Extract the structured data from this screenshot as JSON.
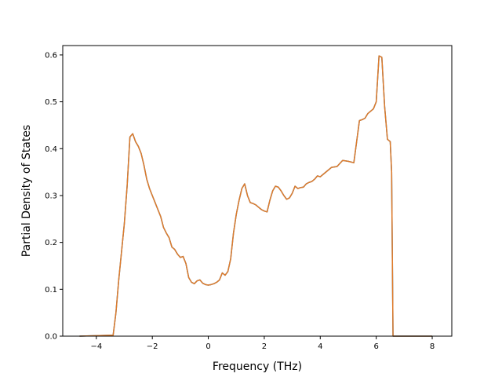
{
  "chart_data": {
    "type": "line",
    "xlabel": "Frequency (THz)",
    "ylabel": "Partial Density of States",
    "xlim": [
      -5.2,
      8.7
    ],
    "ylim": [
      0.0,
      0.62
    ],
    "xticks": [
      -4,
      -2,
      0,
      2,
      4,
      6,
      8
    ],
    "xtick_labels": [
      "−4",
      "−2",
      "0",
      "2",
      "4",
      "6",
      "8"
    ],
    "yticks": [
      0.0,
      0.1,
      0.2,
      0.3,
      0.4,
      0.5,
      0.6
    ],
    "ytick_labels": [
      "0.0",
      "0.1",
      "0.2",
      "0.3",
      "0.4",
      "0.5",
      "0.6"
    ],
    "grid": false,
    "series": [
      {
        "color": "#1f77b4",
        "x": [
          -4.6,
          -3.4,
          -3.3,
          -3.2,
          -3.1,
          -3.0,
          -2.9,
          -2.8,
          -2.7,
          -2.6,
          -2.5,
          -2.4,
          -2.3,
          -2.2,
          -2.1,
          -2.0,
          -1.9,
          -1.8,
          -1.7,
          -1.6,
          -1.5,
          -1.4,
          -1.3,
          -1.2,
          -1.1,
          -1.0,
          -0.9,
          -0.8,
          -0.7,
          -0.6,
          -0.5,
          -0.4,
          -0.3,
          -0.2,
          -0.1,
          0.0,
          0.1,
          0.2,
          0.3,
          0.4,
          0.5,
          0.6,
          0.7,
          0.8,
          0.9,
          1.0,
          1.1,
          1.2,
          1.3,
          1.4,
          1.5,
          1.6,
          1.7,
          1.8,
          1.9,
          2.0,
          2.1,
          2.2,
          2.3,
          2.4,
          2.5,
          2.6,
          2.7,
          2.8,
          2.9,
          3.0,
          3.1,
          3.2,
          3.3,
          3.4,
          3.5,
          3.6,
          3.7,
          3.8,
          3.9,
          4.0,
          4.2,
          4.4,
          4.6,
          4.8,
          5.0,
          5.2,
          5.4,
          5.5,
          5.6,
          5.7,
          5.8,
          5.9,
          6.0,
          6.1,
          6.2,
          6.3,
          6.4,
          6.5,
          6.55,
          6.6,
          6.7,
          6.8,
          6.9,
          7.0,
          7.1,
          8.0
        ],
        "y": [
          0.0,
          0.002,
          0.05,
          0.12,
          0.18,
          0.24,
          0.32,
          0.425,
          0.432,
          0.415,
          0.405,
          0.39,
          0.365,
          0.335,
          0.315,
          0.3,
          0.285,
          0.27,
          0.255,
          0.232,
          0.22,
          0.21,
          0.19,
          0.185,
          0.175,
          0.168,
          0.17,
          0.155,
          0.125,
          0.115,
          0.112,
          0.118,
          0.12,
          0.113,
          0.11,
          0.109,
          0.11,
          0.112,
          0.115,
          0.12,
          0.135,
          0.13,
          0.138,
          0.165,
          0.22,
          0.26,
          0.29,
          0.315,
          0.325,
          0.3,
          0.285,
          0.283,
          0.28,
          0.275,
          0.27,
          0.267,
          0.265,
          0.29,
          0.31,
          0.32,
          0.318,
          0.31,
          0.3,
          0.292,
          0.295,
          0.305,
          0.32,
          0.315,
          0.317,
          0.318,
          0.325,
          0.328,
          0.33,
          0.335,
          0.342,
          0.34,
          0.35,
          0.36,
          0.362,
          0.375,
          0.373,
          0.37,
          0.46,
          0.462,
          0.465,
          0.475,
          0.48,
          0.485,
          0.5,
          0.598,
          0.595,
          0.49,
          0.42,
          0.415,
          0.35,
          0.0,
          0.0,
          0.0,
          0.0,
          0.0,
          0.0,
          0.0
        ]
      },
      {
        "color": "#e07b2a",
        "x": [
          -4.6,
          -3.4,
          -3.3,
          -3.2,
          -3.1,
          -3.0,
          -2.9,
          -2.8,
          -2.7,
          -2.6,
          -2.5,
          -2.4,
          -2.3,
          -2.2,
          -2.1,
          -2.0,
          -1.9,
          -1.8,
          -1.7,
          -1.6,
          -1.5,
          -1.4,
          -1.3,
          -1.2,
          -1.1,
          -1.0,
          -0.9,
          -0.8,
          -0.7,
          -0.6,
          -0.5,
          -0.4,
          -0.3,
          -0.2,
          -0.1,
          0.0,
          0.1,
          0.2,
          0.3,
          0.4,
          0.5,
          0.6,
          0.7,
          0.8,
          0.9,
          1.0,
          1.1,
          1.2,
          1.3,
          1.4,
          1.5,
          1.6,
          1.7,
          1.8,
          1.9,
          2.0,
          2.1,
          2.2,
          2.3,
          2.4,
          2.5,
          2.6,
          2.7,
          2.8,
          2.9,
          3.0,
          3.1,
          3.2,
          3.3,
          3.4,
          3.5,
          3.6,
          3.7,
          3.8,
          3.9,
          4.0,
          4.2,
          4.4,
          4.6,
          4.8,
          5.0,
          5.2,
          5.4,
          5.5,
          5.6,
          5.7,
          5.8,
          5.9,
          6.0,
          6.1,
          6.2,
          6.3,
          6.4,
          6.5,
          6.55,
          6.6,
          6.7,
          6.8,
          6.9,
          7.0,
          7.1,
          8.0
        ],
        "y": [
          0.0,
          0.002,
          0.05,
          0.12,
          0.18,
          0.24,
          0.32,
          0.425,
          0.432,
          0.415,
          0.405,
          0.39,
          0.365,
          0.335,
          0.315,
          0.3,
          0.285,
          0.27,
          0.255,
          0.232,
          0.22,
          0.21,
          0.19,
          0.185,
          0.175,
          0.168,
          0.17,
          0.155,
          0.125,
          0.115,
          0.112,
          0.118,
          0.12,
          0.113,
          0.11,
          0.109,
          0.11,
          0.112,
          0.115,
          0.12,
          0.135,
          0.13,
          0.138,
          0.165,
          0.22,
          0.26,
          0.29,
          0.315,
          0.325,
          0.3,
          0.285,
          0.283,
          0.28,
          0.275,
          0.27,
          0.267,
          0.265,
          0.29,
          0.31,
          0.32,
          0.318,
          0.31,
          0.3,
          0.292,
          0.295,
          0.305,
          0.32,
          0.315,
          0.317,
          0.318,
          0.325,
          0.328,
          0.33,
          0.335,
          0.342,
          0.34,
          0.35,
          0.36,
          0.362,
          0.375,
          0.373,
          0.37,
          0.46,
          0.462,
          0.465,
          0.475,
          0.48,
          0.485,
          0.5,
          0.598,
          0.595,
          0.49,
          0.42,
          0.415,
          0.35,
          0.0,
          0.0,
          0.0,
          0.0,
          0.0,
          0.0,
          0.0
        ]
      }
    ]
  }
}
